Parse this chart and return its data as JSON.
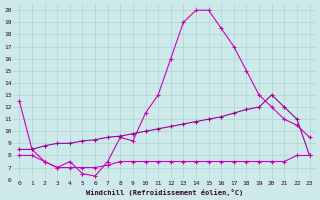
{
  "xlabel": "Windchill (Refroidissement éolien,°C)",
  "ylabel": "",
  "xlim": [
    -0.5,
    23.5
  ],
  "ylim": [
    6,
    20.5
  ],
  "xticks": [
    0,
    1,
    2,
    3,
    4,
    5,
    6,
    7,
    8,
    9,
    10,
    11,
    12,
    13,
    14,
    15,
    16,
    17,
    18,
    19,
    20,
    21,
    22,
    23
  ],
  "yticks": [
    6,
    7,
    8,
    9,
    10,
    11,
    12,
    13,
    14,
    15,
    16,
    17,
    18,
    19,
    20
  ],
  "bg_color": "#cee9e9",
  "grid_color": "#add4d4",
  "line_color1": "#cc00bb",
  "line_color2": "#990099",
  "line_color3": "#cc00bb",
  "line1_x": [
    0,
    1,
    2,
    3,
    4,
    5,
    6,
    7,
    8,
    9,
    10,
    11,
    12,
    13,
    14,
    15,
    16,
    17,
    18,
    19,
    20,
    21,
    22,
    23
  ],
  "line1_y": [
    12.5,
    8.5,
    7.5,
    7.0,
    7.5,
    6.5,
    6.3,
    7.5,
    9.5,
    9.2,
    11.5,
    13.0,
    16.0,
    19.0,
    20.0,
    20.0,
    18.5,
    17.0,
    15.0,
    13.0,
    12.0,
    11.0,
    10.5,
    9.5
  ],
  "line2_x": [
    0,
    1,
    2,
    3,
    4,
    5,
    6,
    7,
    8,
    9,
    10,
    11,
    12,
    13,
    14,
    15,
    16,
    17,
    18,
    19,
    20,
    21,
    22,
    23
  ],
  "line2_y": [
    8.5,
    8.5,
    8.8,
    9.0,
    9.0,
    9.2,
    9.3,
    9.5,
    9.6,
    9.8,
    10.0,
    10.2,
    10.4,
    10.6,
    10.8,
    11.0,
    11.2,
    11.5,
    11.8,
    12.0,
    13.0,
    12.0,
    11.0,
    8.0
  ],
  "line3_x": [
    0,
    1,
    2,
    3,
    4,
    5,
    6,
    7,
    8,
    9,
    10,
    11,
    12,
    13,
    14,
    15,
    16,
    17,
    18,
    19,
    20,
    21,
    22,
    23
  ],
  "line3_y": [
    8.0,
    8.0,
    7.5,
    7.0,
    7.0,
    7.0,
    7.0,
    7.2,
    7.5,
    7.5,
    7.5,
    7.5,
    7.5,
    7.5,
    7.5,
    7.5,
    7.5,
    7.5,
    7.5,
    7.5,
    7.5,
    7.5,
    8.0,
    8.0
  ]
}
